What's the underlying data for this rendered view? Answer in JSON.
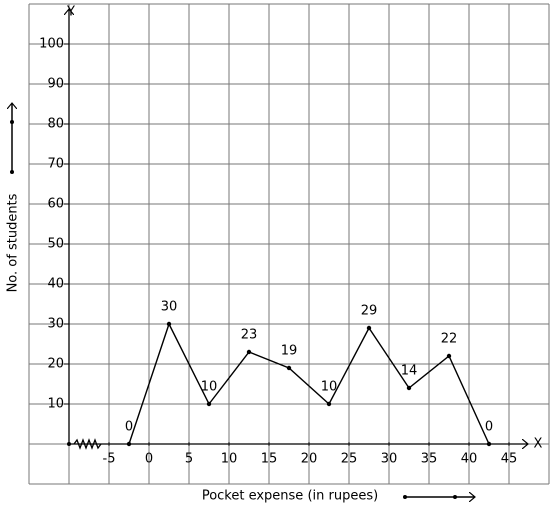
{
  "chart_data": {
    "type": "line",
    "x_axis_letter": "X",
    "y_axis_letter": "Y",
    "xlabel": "Pocket expense (in rupees)",
    "ylabel": "No. of students",
    "x": [
      -2.5,
      2.5,
      7.5,
      12.5,
      17.5,
      22.5,
      27.5,
      32.5,
      37.5,
      42.5
    ],
    "series": [
      {
        "color": "#000000",
        "values": [
          0,
          30,
          10,
          23,
          19,
          10,
          29,
          14,
          22,
          0
        ]
      }
    ],
    "xlim": [
      -15,
      50
    ],
    "ylim": [
      -10,
      110
    ],
    "xticks": [
      -5,
      0,
      5,
      10,
      15,
      20,
      25,
      30,
      35,
      40,
      45
    ],
    "yticks": [
      10,
      20,
      30,
      40,
      50,
      60,
      70,
      80,
      90,
      100
    ],
    "grid": true
  }
}
